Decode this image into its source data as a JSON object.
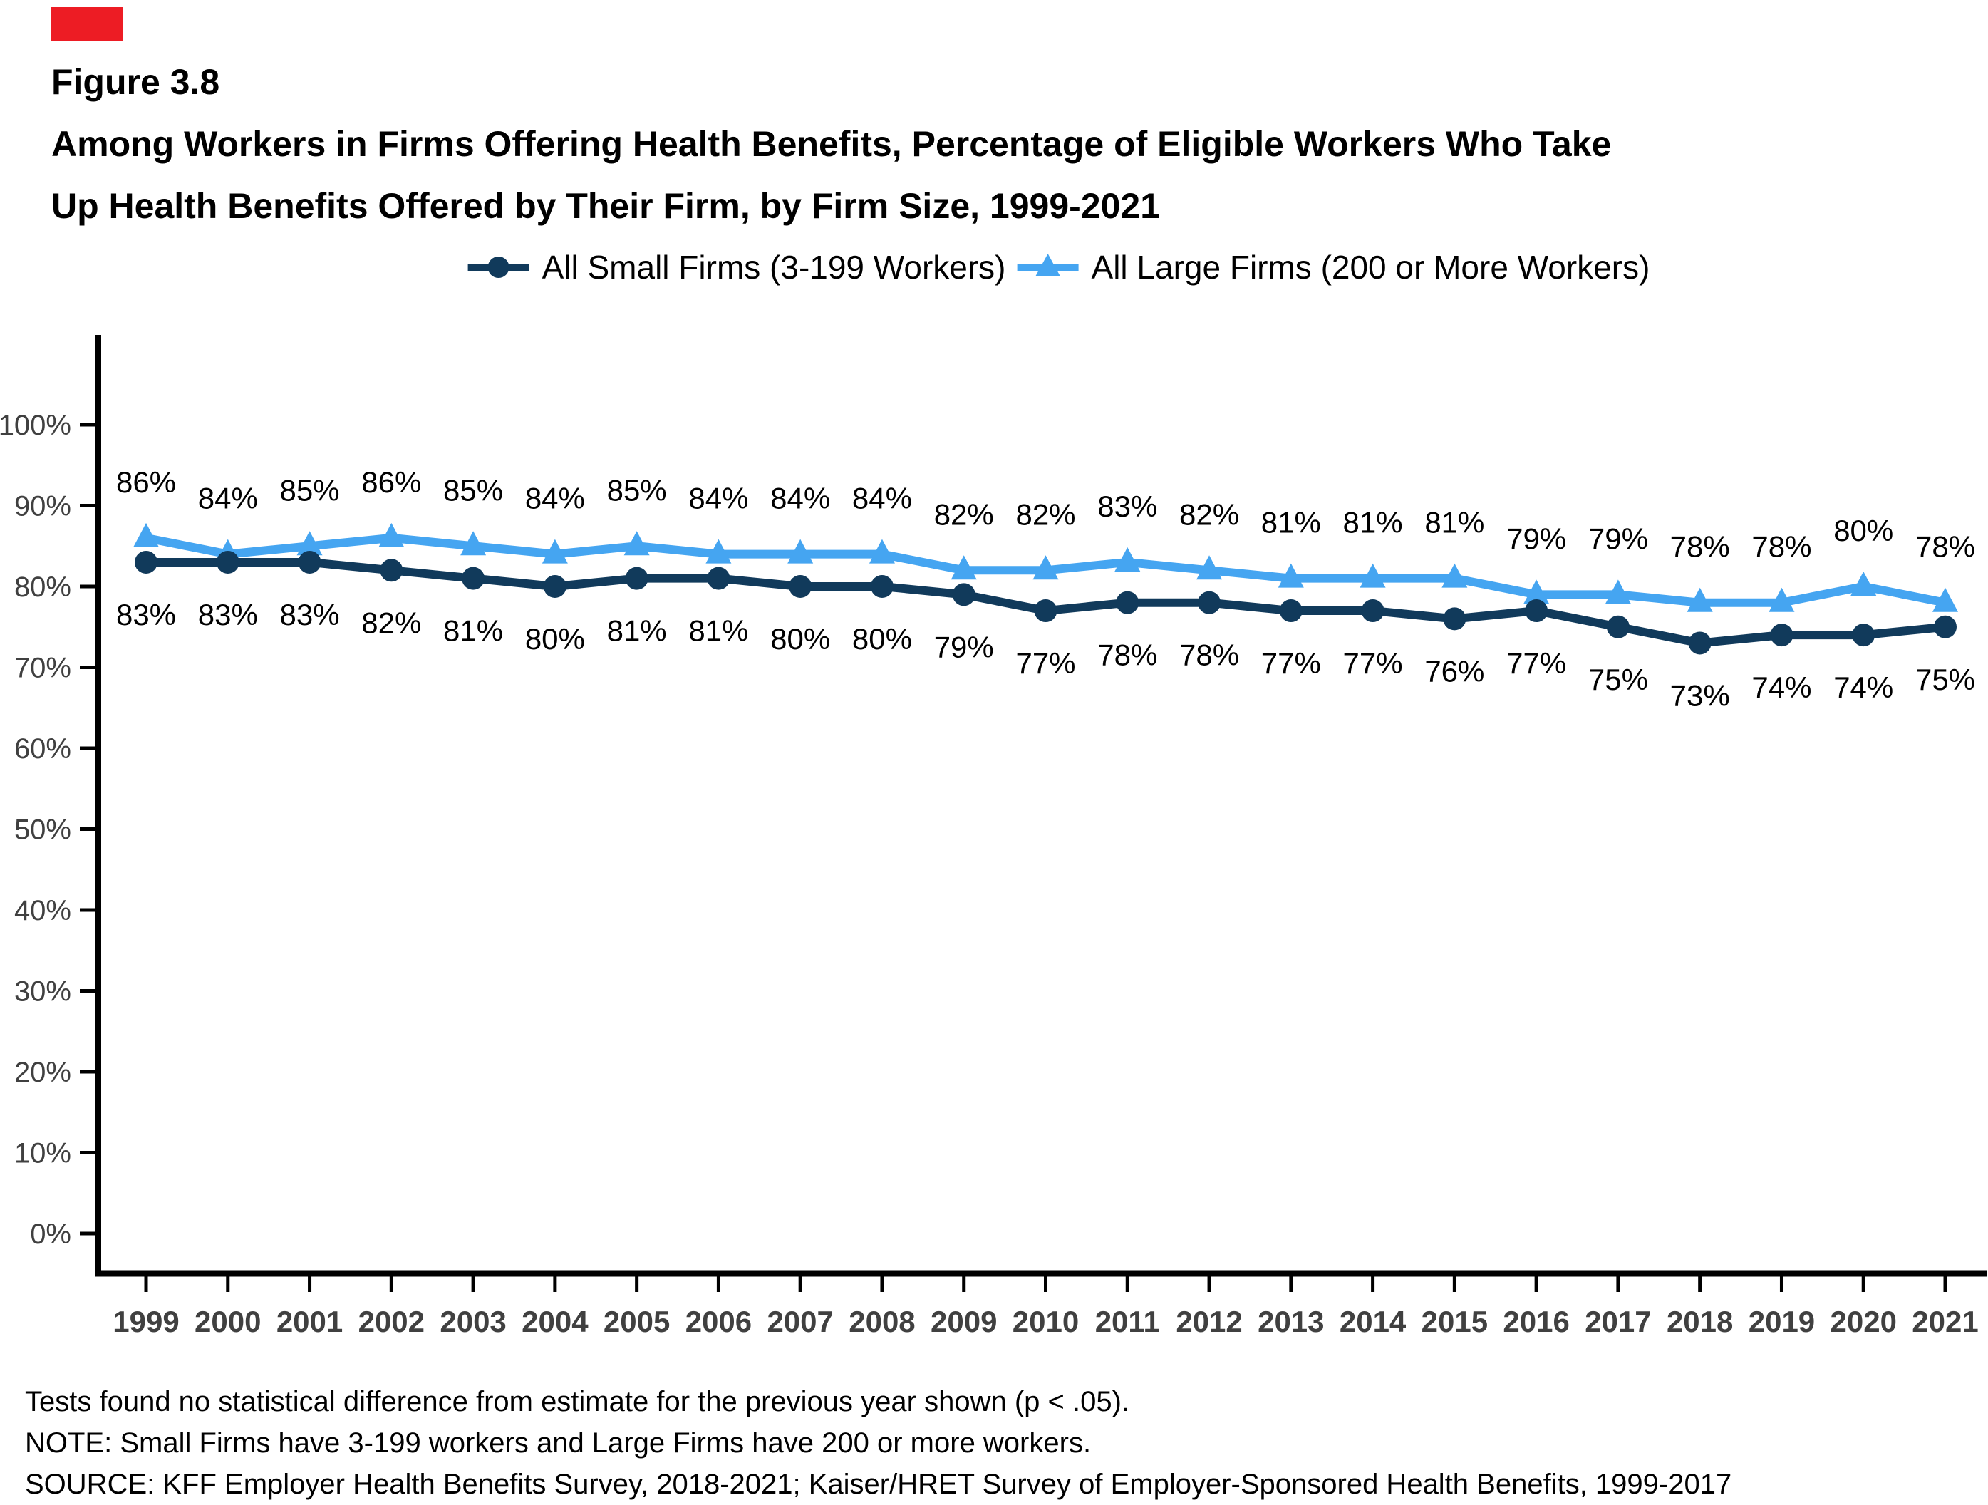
{
  "page": {
    "figure_label": "Figure 3.8",
    "title_line1": "Among Workers in Firms Offering Health Benefits, Percentage of Eligible Workers Who Take",
    "title_line2": "Up Health Benefits Offered by Their Firm, by Firm Size, 1999-2021",
    "brand_mark_color": "#ED1C24"
  },
  "chart_data": {
    "type": "line",
    "title": "Among Workers in Firms Offering Health Benefits, Percentage of Eligible Workers Who Take Up Health Benefits Offered by Their Firm, by Firm Size, 1999-2021",
    "x": [
      1999,
      2000,
      2001,
      2002,
      2003,
      2004,
      2005,
      2006,
      2007,
      2008,
      2009,
      2010,
      2011,
      2012,
      2013,
      2014,
      2015,
      2016,
      2017,
      2018,
      2019,
      2020,
      2021
    ],
    "series": [
      {
        "name": "All Small Firms (3-199 Workers)",
        "color": "#113A5B",
        "marker": "circle",
        "label_position": "below",
        "values": [
          83,
          83,
          83,
          82,
          81,
          80,
          81,
          81,
          80,
          80,
          79,
          77,
          78,
          78,
          77,
          77,
          76,
          77,
          75,
          73,
          74,
          74,
          75
        ]
      },
      {
        "name": "All Large Firms (200 or More Workers)",
        "color": "#45A5F1",
        "marker": "triangle-up",
        "label_position": "above",
        "values": [
          86,
          84,
          85,
          86,
          85,
          84,
          85,
          84,
          84,
          84,
          82,
          82,
          83,
          82,
          81,
          81,
          81,
          79,
          79,
          78,
          78,
          80,
          78
        ]
      }
    ],
    "xlabel": "",
    "ylabel": "",
    "yticks": [
      0,
      10,
      20,
      30,
      40,
      50,
      60,
      70,
      80,
      90,
      100
    ],
    "ytick_suffix": "%",
    "ylim": [
      0,
      107
    ],
    "grid": false,
    "legend_position": "top",
    "point_labels": "percent",
    "axis_color": "#000000",
    "tick_label_color": "#404040"
  },
  "footnotes": [
    "Tests found no statistical difference from estimate for the previous year shown (p < .05).",
    "NOTE: Small Firms have 3-199 workers and Large Firms have 200 or more workers.",
    "SOURCE: KFF Employer Health Benefits Survey, 2018-2021; Kaiser/HRET Survey of Employer-Sponsored Health Benefits, 1999-2017"
  ]
}
